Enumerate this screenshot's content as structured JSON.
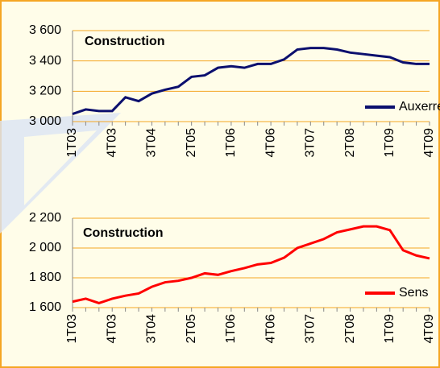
{
  "chart_data": [
    {
      "type": "line",
      "annotation": "Construction",
      "categories": [
        "1T03",
        null,
        null,
        "4T03",
        null,
        null,
        "3T04",
        null,
        null,
        "2T05",
        null,
        null,
        "1T06",
        null,
        null,
        "4T06",
        null,
        null,
        "3T07",
        null,
        null,
        "2T08",
        null,
        null,
        "1T09",
        null,
        null,
        "4T09"
      ],
      "series": [
        {
          "name": "Auxerre",
          "color": "#0b0f6e",
          "values": [
            3050,
            3080,
            3070,
            3070,
            3160,
            3135,
            3185,
            3210,
            3230,
            3295,
            3305,
            3355,
            3365,
            3355,
            3380,
            3380,
            3410,
            3475,
            3485,
            3485,
            3475,
            3455,
            3445,
            3435,
            3425,
            3390,
            3380,
            3380
          ]
        }
      ],
      "ylim": [
        3000,
        3600
      ],
      "yticks": [
        {
          "value": 3000,
          "label": "3 000"
        },
        {
          "value": 3200,
          "label": "3 200"
        },
        {
          "value": 3400,
          "label": "3 400"
        },
        {
          "value": 3600,
          "label": "3 600"
        }
      ],
      "grid": true,
      "legend": "lower right"
    },
    {
      "type": "line",
      "annotation": "Construction",
      "categories": [
        "1T03",
        null,
        null,
        "4T03",
        null,
        null,
        "3T04",
        null,
        null,
        "2T05",
        null,
        null,
        "1T06",
        null,
        null,
        "4T06",
        null,
        null,
        "3T07",
        null,
        null,
        "2T08",
        null,
        null,
        "1T09",
        null,
        null,
        "4T09"
      ],
      "series": [
        {
          "name": "Sens",
          "color": "#ff0000",
          "values": [
            1640,
            1660,
            1630,
            1660,
            1680,
            1695,
            1740,
            1770,
            1780,
            1800,
            1830,
            1820,
            1845,
            1865,
            1890,
            1900,
            1935,
            2000,
            2030,
            2060,
            2105,
            2125,
            2145,
            2145,
            2120,
            1985,
            1950,
            1930
          ]
        }
      ],
      "ylim": [
        1600,
        2200
      ],
      "yticks": [
        {
          "value": 1600,
          "label": "1 600"
        },
        {
          "value": 1800,
          "label": "1 800"
        },
        {
          "value": 2000,
          "label": "2 000"
        },
        {
          "value": 2200,
          "label": "2 200"
        }
      ],
      "grid": true,
      "legend": "lower right"
    }
  ]
}
